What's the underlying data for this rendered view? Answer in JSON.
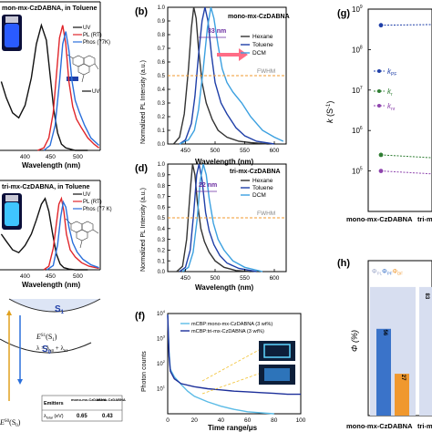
{
  "panels": {
    "a": {
      "title": "mon-mx-CzDABNA, in Toluene",
      "xlabel": "Wavelength (nm)",
      "xticks": [
        "400",
        "450",
        "500"
      ],
      "legend": [
        "UV",
        "PL (RT)",
        "Phos (77K)"
      ]
    },
    "b": {
      "letter": "(b)",
      "label": "mono-mx-CzDABNA",
      "annotation": "33 nm",
      "fwhm": "FWHM",
      "xlabel": "Wavelength (nm)",
      "ylabel": "Normalized PL Intensity (a.u.)",
      "xticks": [
        "450",
        "500",
        "550",
        "600"
      ],
      "yticks": [
        "0.0",
        "0.1",
        "0.2",
        "0.3",
        "0.4",
        "0.5",
        "0.6",
        "0.7",
        "0.8",
        "0.9",
        "1.0"
      ],
      "legend": [
        "Hexane",
        "Toluene",
        "DCM"
      ]
    },
    "c": {
      "title": "tri-mx-CzDABNA, in Toluene",
      "xlabel": "Wavelength (nm)",
      "xticks": [
        "400",
        "450",
        "500"
      ],
      "legend": [
        "UV",
        "PL (RT)",
        "Phos (77 K)"
      ]
    },
    "d": {
      "letter": "(d)",
      "label": "tri-mx-CzDABNA",
      "annotation": "22 nm",
      "fwhm": "FWHM",
      "xlabel": "Wavelength (nm)",
      "ylabel": "Normalized PL Intensity (a.u.)",
      "xticks": [
        "450",
        "500",
        "550",
        "600"
      ],
      "yticks": [
        "0.0",
        "0.1",
        "0.2",
        "0.3",
        "0.4",
        "0.5",
        "0.6",
        "0.7",
        "0.8",
        "0.9",
        "1.0"
      ],
      "legend": [
        "Hexane",
        "Toluene",
        "DCM"
      ]
    },
    "e": {
      "s1": "S",
      "s1sub": "1",
      "s0": "S",
      "s0sub": "0",
      "es1": "E",
      "es1sup": "S1",
      "es1rest": "(S",
      "es1sub": "1",
      "es1close": ")",
      "lambda": "λ = λ",
      "lambda_s0": "S0",
      "lambda_plus": " + λ",
      "lambda_s1": "S1",
      "es0": "E",
      "es0sup": "S0",
      "es0rest": "(S",
      "es0sub": "0",
      "es0close": ")",
      "table": {
        "headers": [
          "Emitters",
          "mono-mx-CzDABNA",
          "tri-mx-CzDABNA"
        ],
        "row_label_main": "λ",
        "row_label_sub": "total",
        "row_label_unit": " (eV)",
        "row_values": [
          "0.65",
          "0.43"
        ]
      }
    },
    "f": {
      "letter": "(f)",
      "xlabel": "Time range/μs",
      "ylabel": "Photon counts",
      "yticks": [
        "10",
        "10",
        "10",
        "10"
      ],
      "yexps": [
        "1",
        "2",
        "3",
        "4"
      ],
      "xticks": [
        "0",
        "20",
        "40",
        "60",
        "80",
        "100"
      ],
      "legend": [
        "mCBP:mono-mx-CzDABNA (3 wt%)",
        "mCBP:tri-mx-CzDABNA (3 wt%)"
      ]
    },
    "g": {
      "letter": "(g)",
      "ylabel_main": "k",
      "ylabel_unit": " (S",
      "ylabel_exp": "-1",
      "ylabel_close": ")",
      "yticks": [
        "10",
        "10",
        "10",
        "10",
        "10"
      ],
      "yexps": [
        "5",
        "6",
        "7",
        "8",
        "9"
      ],
      "legend": [
        {
          "main": "k",
          "sub": "PF"
        },
        {
          "main": "k",
          "sub": "r"
        },
        {
          "main": "k",
          "sub": "nr"
        }
      ],
      "xticks": [
        "mono-mx-CzDABNA",
        "tri-m"
      ]
    },
    "h": {
      "letter": "(h)",
      "ylabel": "Φ (%)",
      "legend": [
        {
          "main": "Φ",
          "sub": "PL"
        },
        {
          "main": "Φ",
          "sub": "PF"
        },
        {
          "main": "Φ",
          "sub": "DF"
        }
      ],
      "xticks": [
        "mono-mx-CzDABNA",
        "tri-m"
      ],
      "bar_labels": [
        "56",
        "27",
        "83"
      ]
    }
  },
  "chart_data": [
    {
      "panel": "a",
      "type": "line",
      "title": "mon-mx-CzDABNA, in Toluene",
      "xlabel": "Wavelength (nm)",
      "xlim": [
        370,
        530
      ],
      "ylim": [
        0,
        1.1
      ],
      "series": [
        {
          "name": "UV",
          "color": "#111111",
          "x": [
            372,
            380,
            390,
            400,
            410,
            420,
            428,
            436,
            444,
            450,
            456,
            462,
            468,
            475,
            482,
            490,
            500,
            510
          ],
          "y": [
            0.55,
            0.42,
            0.3,
            0.26,
            0.36,
            0.58,
            0.85,
            1.0,
            0.88,
            0.6,
            0.32,
            0.14,
            0.05,
            0.02,
            0.01,
            0.0,
            0.0,
            0.0
          ]
        },
        {
          "name": "PL (RT)",
          "color": "#e0262b",
          "x": [
            430,
            440,
            448,
            455,
            460,
            465,
            470,
            475,
            480,
            486,
            492,
            500,
            510,
            520,
            528
          ],
          "y": [
            0.0,
            0.02,
            0.1,
            0.3,
            0.6,
            0.9,
            1.0,
            0.85,
            0.55,
            0.35,
            0.25,
            0.18,
            0.1,
            0.05,
            0.02
          ]
        },
        {
          "name": "Phos (77K)",
          "color": "#2a6fdb",
          "x": [
            440,
            450,
            458,
            465,
            470,
            475,
            480,
            485,
            490,
            497,
            505,
            515,
            528
          ],
          "y": [
            0.0,
            0.04,
            0.2,
            0.55,
            0.85,
            0.95,
            0.8,
            0.55,
            0.4,
            0.3,
            0.2,
            0.1,
            0.04
          ]
        }
      ]
    },
    {
      "panel": "b",
      "type": "line",
      "xlabel": "Wavelength (nm)",
      "ylabel": "Normalized PL Intensity (a.u.)",
      "xlim": [
        420,
        620
      ],
      "ylim": [
        0,
        1.0
      ],
      "series": [
        {
          "name": "Hexane",
          "color": "#333333",
          "x": [
            430,
            440,
            448,
            455,
            460,
            464,
            468,
            472,
            478,
            485,
            495,
            505,
            520,
            540,
            560,
            590
          ],
          "y": [
            0.0,
            0.05,
            0.22,
            0.55,
            0.85,
            1.0,
            0.92,
            0.7,
            0.45,
            0.3,
            0.18,
            0.1,
            0.05,
            0.02,
            0.01,
            0.0
          ]
        },
        {
          "name": "Toluene",
          "color": "#1f3fa8",
          "x": [
            440,
            450,
            460,
            466,
            472,
            478,
            483,
            488,
            494,
            500,
            510,
            520,
            535,
            550,
            570,
            600
          ],
          "y": [
            0.0,
            0.03,
            0.15,
            0.35,
            0.65,
            0.9,
            1.0,
            0.9,
            0.65,
            0.45,
            0.3,
            0.22,
            0.12,
            0.06,
            0.02,
            0.0
          ]
        },
        {
          "name": "DCM",
          "color": "#3ba0e0",
          "x": [
            440,
            455,
            465,
            472,
            480,
            487,
            493,
            498,
            505,
            512,
            520,
            530,
            545,
            560,
            580,
            600,
            615
          ],
          "y": [
            0.0,
            0.03,
            0.1,
            0.25,
            0.55,
            0.85,
            1.0,
            0.92,
            0.72,
            0.55,
            0.45,
            0.38,
            0.3,
            0.2,
            0.1,
            0.05,
            0.02
          ]
        }
      ]
    },
    {
      "panel": "c",
      "type": "line",
      "title": "tri-mx-CzDABNA, in Toluene",
      "xlabel": "Wavelength (nm)",
      "xlim": [
        370,
        530
      ],
      "ylim": [
        0,
        1.1
      ],
      "series": [
        {
          "name": "UV",
          "color": "#111111",
          "x": [
            372,
            380,
            390,
            400,
            410,
            420,
            428,
            436,
            442,
            448,
            454,
            460,
            466,
            472,
            480,
            490,
            510
          ],
          "y": [
            0.5,
            0.4,
            0.28,
            0.24,
            0.34,
            0.5,
            0.7,
            0.92,
            1.0,
            0.82,
            0.5,
            0.22,
            0.08,
            0.03,
            0.01,
            0.0,
            0.0
          ]
        },
        {
          "name": "PL (RT)",
          "color": "#e0262b",
          "x": [
            440,
            448,
            455,
            460,
            464,
            468,
            472,
            476,
            482,
            490,
            500,
            512,
            528
          ],
          "y": [
            0.0,
            0.05,
            0.3,
            0.65,
            0.92,
            1.0,
            0.82,
            0.5,
            0.28,
            0.18,
            0.1,
            0.05,
            0.02
          ]
        },
        {
          "name": "Phos (77 K)",
          "color": "#2a6fdb",
          "x": [
            445,
            455,
            462,
            467,
            471,
            475,
            480,
            486,
            493,
            502,
            515,
            528
          ],
          "y": [
            0.0,
            0.06,
            0.35,
            0.75,
            0.95,
            0.88,
            0.6,
            0.38,
            0.25,
            0.15,
            0.07,
            0.03
          ]
        }
      ]
    },
    {
      "panel": "d",
      "type": "line",
      "xlabel": "Wavelength (nm)",
      "ylabel": "Normalized PL Intensity (a.u.)",
      "xlim": [
        420,
        620
      ],
      "ylim": [
        0,
        1.0
      ],
      "series": [
        {
          "name": "Hexane",
          "color": "#333333",
          "x": [
            435,
            445,
            452,
            458,
            462,
            466,
            470,
            476,
            482,
            490,
            500,
            515,
            535,
            560
          ],
          "y": [
            0.0,
            0.05,
            0.3,
            0.75,
            1.0,
            0.9,
            0.65,
            0.4,
            0.28,
            0.18,
            0.1,
            0.04,
            0.01,
            0.0
          ]
        },
        {
          "name": "Toluene",
          "color": "#1f3fa8",
          "x": [
            440,
            450,
            458,
            464,
            469,
            473,
            478,
            484,
            490,
            498,
            508,
            520,
            540,
            570
          ],
          "y": [
            0.0,
            0.04,
            0.2,
            0.55,
            0.9,
            1.0,
            0.85,
            0.55,
            0.38,
            0.25,
            0.15,
            0.08,
            0.03,
            0.0
          ]
        },
        {
          "name": "DCM",
          "color": "#3ba0e0",
          "x": [
            445,
            455,
            463,
            470,
            475,
            480,
            485,
            490,
            497,
            505,
            515,
            530,
            550,
            580
          ],
          "y": [
            0.0,
            0.04,
            0.18,
            0.5,
            0.85,
            1.0,
            0.9,
            0.68,
            0.45,
            0.3,
            0.2,
            0.1,
            0.04,
            0.0
          ]
        }
      ]
    },
    {
      "panel": "f",
      "type": "line",
      "xlabel": "Time range/μs",
      "ylabel": "Photon counts",
      "xlim": [
        0,
        100
      ],
      "ylim": [
        1,
        10000
      ],
      "yscale": "log",
      "series": [
        {
          "name": "mCBP:mono-mx-CzDABNA (3 wt%)",
          "color": "#5bbbe6",
          "x": [
            0,
            1,
            2,
            5,
            10,
            15,
            20,
            30,
            40,
            50,
            60,
            70,
            80
          ],
          "y": [
            9000,
            300,
            60,
            30,
            15,
            8,
            5,
            3,
            2,
            1.5,
            1.2,
            1.1,
            1.0
          ]
        },
        {
          "name": "mCBP:tri-mx-CzDABNA (3 wt%)",
          "color": "#1c2f9a",
          "x": [
            0,
            1,
            2,
            5,
            10,
            20,
            30,
            40,
            50,
            60,
            70,
            80,
            90,
            100
          ],
          "y": [
            9000,
            200,
            50,
            25,
            16,
            12,
            10,
            9,
            8,
            7.5,
            7,
            6.5,
            6,
            6
          ]
        }
      ]
    },
    {
      "panel": "g",
      "type": "scatter",
      "ylabel": "k (S-1)",
      "yscale": "log",
      "ylim": [
        10000,
        1000000000
      ],
      "categories": [
        "mono-mx-CzDABNA",
        "tri-m"
      ],
      "series": [
        {
          "name": "kPF",
          "color": "#1f3fa8",
          "values": [
            400000000,
            420000000
          ]
        },
        {
          "name": "kr",
          "color": "#2e7d32",
          "values": [
            250000,
            200000
          ]
        },
        {
          "name": "knr",
          "color": "#8e44ad",
          "values": [
            100000,
            80000
          ]
        }
      ]
    },
    {
      "panel": "h",
      "type": "bar",
      "ylabel": "Φ (%)",
      "categories": [
        "mono-mx-CzDABNA",
        "tri-m"
      ],
      "series": [
        {
          "name": "ΦPL",
          "color": "#d7def0",
          "values": [
            83,
            83
          ]
        },
        {
          "name": "ΦPF",
          "color": "#3a73c9",
          "values": [
            56,
            null
          ]
        },
        {
          "name": "ΦDF",
          "color": "#f0982e",
          "values": [
            27,
            null
          ]
        }
      ]
    }
  ]
}
